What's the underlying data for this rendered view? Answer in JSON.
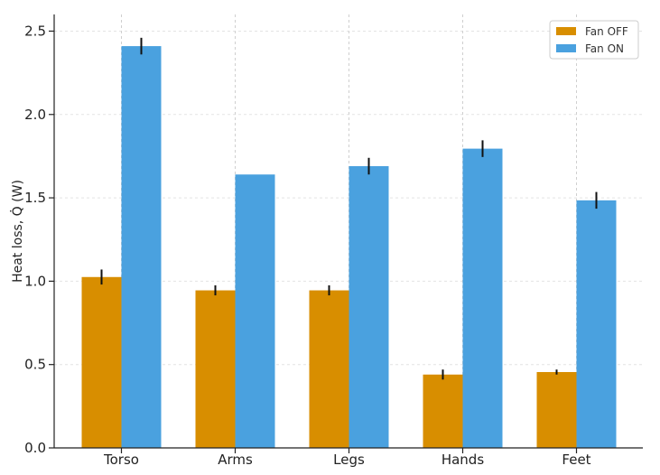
{
  "chart_data": {
    "type": "bar",
    "title": "",
    "xlabel": "",
    "ylabel": "Heat loss, Q̇ (W)",
    "ylim": [
      0,
      2.6
    ],
    "yticks": [
      "0.0",
      "0.5",
      "1.0",
      "1.5",
      "2.0",
      "2.5"
    ],
    "categories": [
      "Torso",
      "Arms",
      "Legs",
      "Hands",
      "Feet"
    ],
    "series": [
      {
        "name": "Fan OFF",
        "color": "#d88e00",
        "values": [
          1.025,
          0.945,
          0.945,
          0.44,
          0.455
        ],
        "errors": [
          0.045,
          0.03,
          0.03,
          0.03,
          0.015
        ]
      },
      {
        "name": "Fan ON",
        "color": "#4aa1df",
        "values": [
          2.41,
          1.64,
          1.69,
          1.795,
          1.485
        ],
        "errors": [
          0.05,
          0.0,
          0.05,
          0.05,
          0.05
        ]
      }
    ],
    "grid": true,
    "legend_position": "top-right"
  }
}
